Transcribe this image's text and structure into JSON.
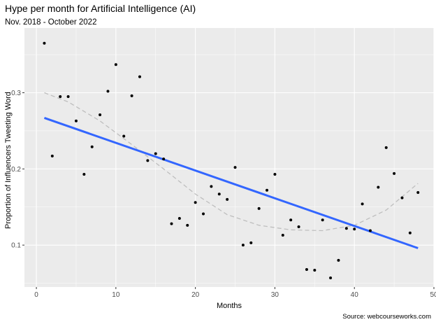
{
  "chart_data": {
    "type": "scatter",
    "title": "Hype per month for Artificial Intelligence (AI)",
    "subtitle": "Nov. 2018 - October 2022",
    "xlabel": "Months",
    "ylabel": "Proportion of Influencers Tweeting Word",
    "caption": "Source: webcourseworks.com",
    "xlim": [
      -1.5,
      50
    ],
    "ylim": [
      0.045,
      0.385
    ],
    "x_ticks": [
      0,
      10,
      20,
      30,
      40,
      50
    ],
    "x_tick_labels": [
      "0",
      "10",
      "20",
      "30",
      "40",
      "50"
    ],
    "y_ticks": [
      0.1,
      0.2,
      0.3
    ],
    "y_tick_labels": [
      "0.1",
      "0.2",
      "0.3"
    ],
    "grid": true,
    "points": {
      "x": [
        1,
        2,
        3,
        4,
        5,
        6,
        7,
        8,
        9,
        10,
        11,
        12,
        13,
        14,
        15,
        16,
        17,
        18,
        19,
        20,
        21,
        22,
        23,
        24,
        25,
        26,
        27,
        28,
        29,
        30,
        31,
        32,
        33,
        34,
        35,
        36,
        37,
        38,
        39,
        40,
        41,
        42,
        43,
        44,
        45,
        46,
        47,
        48
      ],
      "y": [
        0.365,
        0.217,
        0.295,
        0.295,
        0.263,
        0.193,
        0.229,
        0.271,
        0.302,
        0.337,
        0.243,
        0.296,
        0.321,
        0.211,
        0.22,
        0.213,
        0.128,
        0.135,
        0.126,
        0.156,
        0.141,
        0.177,
        0.167,
        0.16,
        0.202,
        0.1,
        0.103,
        0.148,
        0.172,
        0.193,
        0.113,
        0.133,
        0.124,
        0.068,
        0.067,
        0.133,
        0.057,
        0.08,
        0.122,
        0.121,
        0.154,
        0.119,
        0.176,
        0.228,
        0.194,
        0.162,
        0.116,
        0.169
      ]
    },
    "linear_fit": {
      "x": [
        1,
        48
      ],
      "y": [
        0.267,
        0.096
      ],
      "color": "#3366ff"
    },
    "loess_fit": {
      "x": [
        1,
        4,
        8,
        12,
        16,
        20,
        24,
        28,
        32,
        36,
        40,
        44,
        48
      ],
      "y": [
        0.3,
        0.288,
        0.263,
        0.232,
        0.2,
        0.167,
        0.14,
        0.126,
        0.12,
        0.119,
        0.126,
        0.146,
        0.181
      ],
      "color": "#bebebe"
    },
    "colors": {
      "panel": "#ebebeb",
      "grid_major": "#ffffff",
      "points": "#000000"
    }
  }
}
